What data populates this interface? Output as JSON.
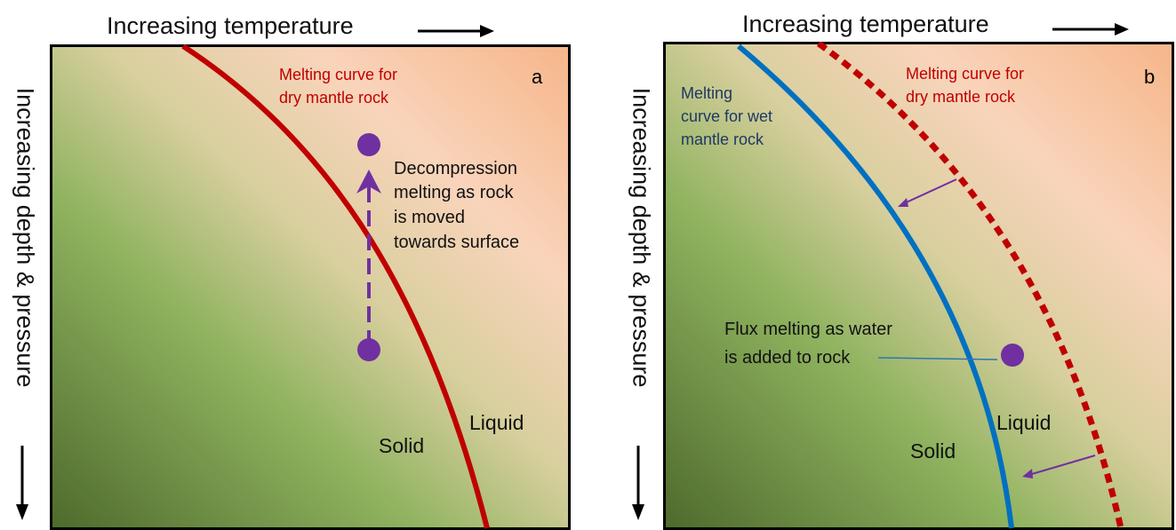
{
  "x_axis_label": "Increasing temperature",
  "y_axis_label": "Increasing depth & pressure",
  "panel_a": {
    "letter": "a",
    "dry_curve_label": [
      "Melting curve for",
      "dry mantle rock"
    ],
    "decompression_label": [
      "Decompression",
      "melting as rock",
      "is moved",
      "towards surface"
    ],
    "solid_label": "Solid",
    "liquid_label": "Liquid"
  },
  "panel_b": {
    "letter": "b",
    "wet_curve_label": [
      "Melting",
      "curve for wet",
      "mantle rock"
    ],
    "dry_curve_label": [
      "Melting curve for",
      "dry mantle rock"
    ],
    "flux_label": [
      "Flux melting as water",
      "is added to rock"
    ],
    "solid_label": "Solid",
    "liquid_label": "Liquid"
  },
  "colors": {
    "dry_curve": "#c00000",
    "wet_curve": "#0070c0",
    "rock_dot": "#7030a0",
    "wet_label": "#1f3864",
    "solid_green_dark": "#4e6a2c",
    "solid_green": "#8fb35f",
    "liquid_peach": "#f8cbad"
  }
}
